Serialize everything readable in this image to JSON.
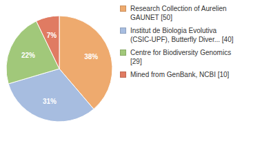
{
  "chart_data": {
    "type": "pie",
    "categories": [
      "Research Collection of Aurelien GAUNET [50]",
      "Institut de Biologia Evolutiva (CSIC-UPF), Butterfly Diver... [40]",
      "Centre for Biodiversity Genomics [29]",
      "Mined from GenBank, NCBI [10]"
    ],
    "values": [
      38,
      31,
      22,
      7
    ],
    "value_labels": [
      "38%",
      "31%",
      "22%",
      "7%"
    ],
    "colors": [
      "#eeaa6e",
      "#a7bde0",
      "#a1c87a",
      "#e07b62"
    ],
    "data_labels": true,
    "legend": "top-right"
  }
}
